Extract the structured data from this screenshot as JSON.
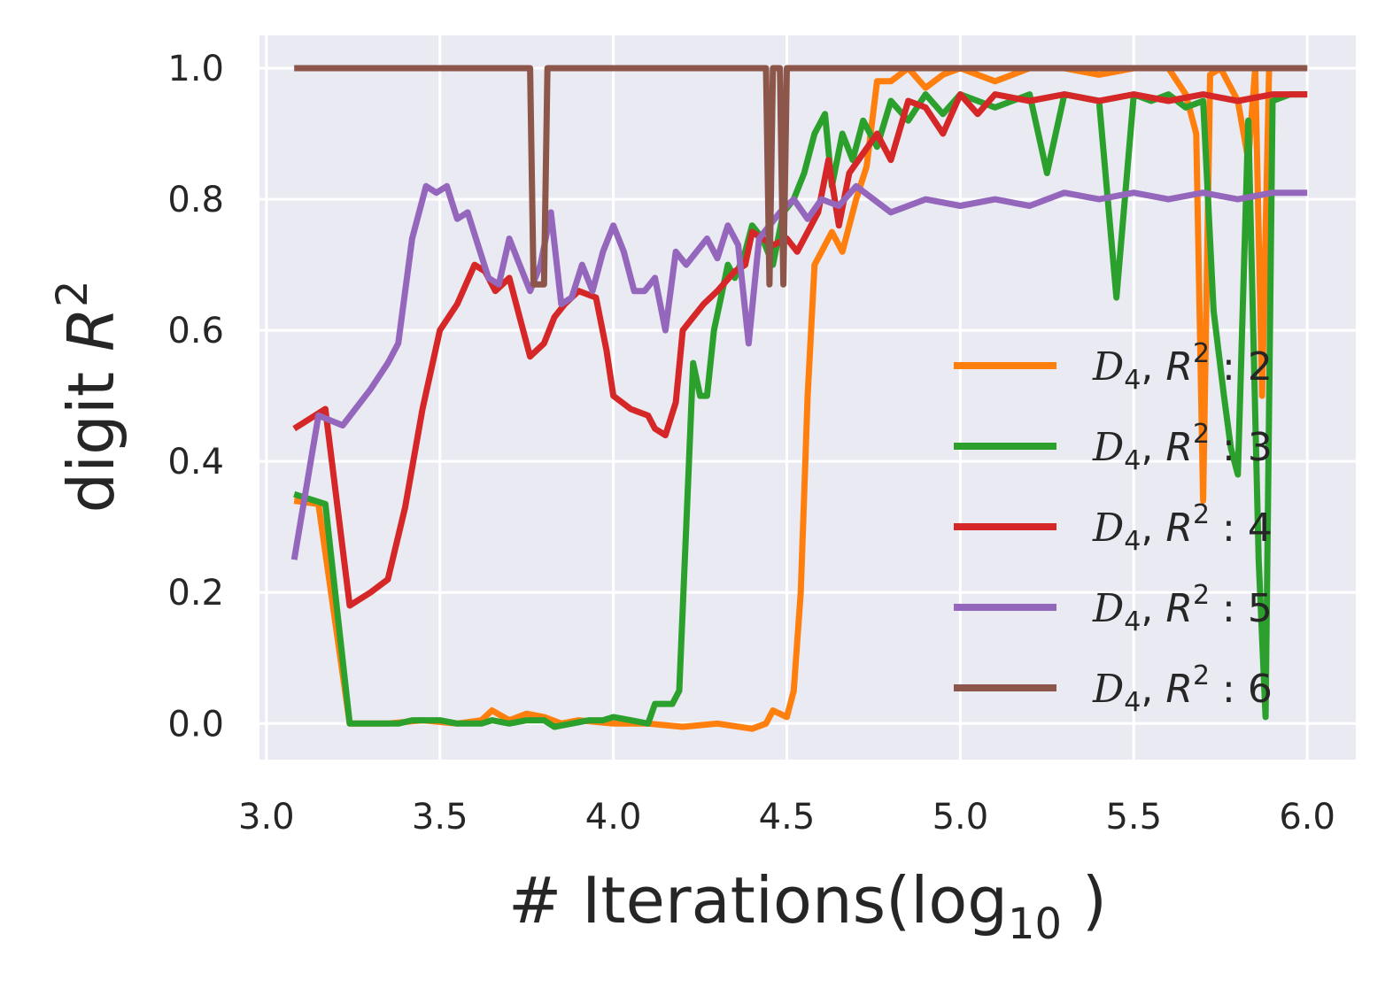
{
  "chart_data": {
    "type": "line",
    "title": "",
    "xlabel": "# Iterations(log",
    "xlabel_sub": "10",
    "xlabel_close": " )",
    "ylabel": "digit ",
    "ylabel_var": "R",
    "ylabel_sup": "2",
    "xlim": [
      2.98,
      6.14
    ],
    "ylim": [
      -0.055,
      1.05
    ],
    "xticks": [
      3.0,
      3.5,
      4.0,
      4.5,
      5.0,
      5.5,
      6.0
    ],
    "xtick_labels": [
      "3.0",
      "3.5",
      "4.0",
      "4.5",
      "5.0",
      "5.5",
      "6.0"
    ],
    "yticks": [
      0.0,
      0.2,
      0.4,
      0.6,
      0.8,
      1.0
    ],
    "ytick_labels": [
      "0.0",
      "0.2",
      "0.4",
      "0.6",
      "0.8",
      "1.0"
    ],
    "grid": true,
    "background": "#eaeaf2",
    "legend_position": "lower-right",
    "series": [
      {
        "name_d": "D",
        "name_dsub": "4",
        "name_r": "R",
        "name_rsup": "2",
        "name_suffix": ": 2",
        "color": "#ff7f0e",
        "points": [
          [
            3.08,
            0.34
          ],
          [
            3.15,
            0.335
          ],
          [
            3.24,
            0.0
          ],
          [
            3.35,
            0.0
          ],
          [
            3.45,
            0.005
          ],
          [
            3.55,
            0.0
          ],
          [
            3.62,
            0.005
          ],
          [
            3.65,
            0.02
          ],
          [
            3.7,
            0.005
          ],
          [
            3.75,
            0.015
          ],
          [
            3.8,
            0.01
          ],
          [
            3.85,
            0.0
          ],
          [
            3.9,
            0.005
          ],
          [
            4.0,
            0.0
          ],
          [
            4.1,
            0.0
          ],
          [
            4.2,
            -0.005
          ],
          [
            4.3,
            0.0
          ],
          [
            4.4,
            -0.008
          ],
          [
            4.44,
            0.0
          ],
          [
            4.46,
            0.02
          ],
          [
            4.5,
            0.01
          ],
          [
            4.52,
            0.05
          ],
          [
            4.54,
            0.2
          ],
          [
            4.56,
            0.5
          ],
          [
            4.58,
            0.7
          ],
          [
            4.6,
            0.72
          ],
          [
            4.63,
            0.75
          ],
          [
            4.66,
            0.72
          ],
          [
            4.7,
            0.8
          ],
          [
            4.73,
            0.85
          ],
          [
            4.76,
            0.98
          ],
          [
            4.8,
            0.98
          ],
          [
            4.85,
            1.0
          ],
          [
            4.9,
            0.97
          ],
          [
            4.95,
            0.99
          ],
          [
            5.0,
            1.0
          ],
          [
            5.1,
            0.98
          ],
          [
            5.2,
            1.0
          ],
          [
            5.3,
            1.0
          ],
          [
            5.4,
            0.99
          ],
          [
            5.5,
            1.0
          ],
          [
            5.6,
            1.0
          ],
          [
            5.65,
            0.96
          ],
          [
            5.68,
            0.9
          ],
          [
            5.7,
            0.34
          ],
          [
            5.72,
            0.99
          ],
          [
            5.75,
            1.0
          ],
          [
            5.8,
            0.95
          ],
          [
            5.83,
            0.86
          ],
          [
            5.85,
            1.0
          ],
          [
            5.87,
            0.5
          ],
          [
            5.89,
            1.0
          ],
          [
            5.95,
            1.0
          ],
          [
            6.0,
            1.0
          ]
        ]
      },
      {
        "name_d": "D",
        "name_dsub": "4",
        "name_r": "R",
        "name_rsup": "2",
        "name_suffix": ": 3",
        "color": "#2ca02c",
        "points": [
          [
            3.08,
            0.35
          ],
          [
            3.17,
            0.335
          ],
          [
            3.24,
            0.0
          ],
          [
            3.3,
            0.0
          ],
          [
            3.38,
            0.0
          ],
          [
            3.42,
            0.005
          ],
          [
            3.5,
            0.005
          ],
          [
            3.55,
            0.0
          ],
          [
            3.62,
            0.0
          ],
          [
            3.65,
            0.005
          ],
          [
            3.7,
            0.0
          ],
          [
            3.75,
            0.005
          ],
          [
            3.8,
            0.005
          ],
          [
            3.83,
            -0.005
          ],
          [
            3.88,
            0.0
          ],
          [
            3.93,
            0.005
          ],
          [
            3.97,
            0.005
          ],
          [
            4.0,
            0.01
          ],
          [
            4.05,
            0.005
          ],
          [
            4.1,
            0.0
          ],
          [
            4.12,
            0.03
          ],
          [
            4.14,
            0.03
          ],
          [
            4.17,
            0.03
          ],
          [
            4.19,
            0.05
          ],
          [
            4.21,
            0.3
          ],
          [
            4.23,
            0.55
          ],
          [
            4.25,
            0.5
          ],
          [
            4.27,
            0.5
          ],
          [
            4.29,
            0.6
          ],
          [
            4.31,
            0.65
          ],
          [
            4.33,
            0.7
          ],
          [
            4.35,
            0.68
          ],
          [
            4.38,
            0.72
          ],
          [
            4.4,
            0.76
          ],
          [
            4.43,
            0.74
          ],
          [
            4.46,
            0.7
          ],
          [
            4.49,
            0.78
          ],
          [
            4.52,
            0.8
          ],
          [
            4.55,
            0.84
          ],
          [
            4.58,
            0.9
          ],
          [
            4.61,
            0.93
          ],
          [
            4.63,
            0.82
          ],
          [
            4.66,
            0.9
          ],
          [
            4.69,
            0.86
          ],
          [
            4.72,
            0.92
          ],
          [
            4.76,
            0.88
          ],
          [
            4.8,
            0.95
          ],
          [
            4.85,
            0.92
          ],
          [
            4.9,
            0.96
          ],
          [
            4.95,
            0.93
          ],
          [
            5.0,
            0.96
          ],
          [
            5.1,
            0.94
          ],
          [
            5.2,
            0.96
          ],
          [
            5.25,
            0.84
          ],
          [
            5.3,
            0.96
          ],
          [
            5.4,
            0.95
          ],
          [
            5.45,
            0.65
          ],
          [
            5.5,
            0.96
          ],
          [
            5.55,
            0.95
          ],
          [
            5.6,
            0.96
          ],
          [
            5.65,
            0.94
          ],
          [
            5.7,
            0.95
          ],
          [
            5.73,
            0.63
          ],
          [
            5.76,
            0.5
          ],
          [
            5.78,
            0.42
          ],
          [
            5.8,
            0.38
          ],
          [
            5.83,
            0.92
          ],
          [
            5.86,
            0.25
          ],
          [
            5.88,
            0.01
          ],
          [
            5.9,
            0.95
          ],
          [
            5.95,
            0.96
          ],
          [
            6.0,
            0.96
          ]
        ]
      },
      {
        "name_d": "D",
        "name_dsub": "4",
        "name_r": "R",
        "name_rsup": "2",
        "name_suffix": ": 4",
        "color": "#d62728",
        "points": [
          [
            3.08,
            0.45
          ],
          [
            3.17,
            0.48
          ],
          [
            3.24,
            0.18
          ],
          [
            3.3,
            0.2
          ],
          [
            3.35,
            0.22
          ],
          [
            3.4,
            0.33
          ],
          [
            3.45,
            0.48
          ],
          [
            3.5,
            0.6
          ],
          [
            3.55,
            0.64
          ],
          [
            3.6,
            0.7
          ],
          [
            3.63,
            0.69
          ],
          [
            3.66,
            0.66
          ],
          [
            3.7,
            0.68
          ],
          [
            3.73,
            0.62
          ],
          [
            3.76,
            0.56
          ],
          [
            3.8,
            0.58
          ],
          [
            3.83,
            0.62
          ],
          [
            3.86,
            0.64
          ],
          [
            3.9,
            0.66
          ],
          [
            3.95,
            0.65
          ],
          [
            3.98,
            0.57
          ],
          [
            4.0,
            0.5
          ],
          [
            4.05,
            0.48
          ],
          [
            4.1,
            0.47
          ],
          [
            4.12,
            0.45
          ],
          [
            4.15,
            0.44
          ],
          [
            4.18,
            0.49
          ],
          [
            4.2,
            0.6
          ],
          [
            4.23,
            0.62
          ],
          [
            4.26,
            0.64
          ],
          [
            4.3,
            0.66
          ],
          [
            4.35,
            0.69
          ],
          [
            4.38,
            0.7
          ],
          [
            4.4,
            0.75
          ],
          [
            4.43,
            0.74
          ],
          [
            4.46,
            0.73
          ],
          [
            4.5,
            0.74
          ],
          [
            4.53,
            0.72
          ],
          [
            4.56,
            0.75
          ],
          [
            4.59,
            0.78
          ],
          [
            4.62,
            0.86
          ],
          [
            4.65,
            0.76
          ],
          [
            4.68,
            0.84
          ],
          [
            4.72,
            0.87
          ],
          [
            4.76,
            0.9
          ],
          [
            4.8,
            0.86
          ],
          [
            4.85,
            0.95
          ],
          [
            4.9,
            0.94
          ],
          [
            4.95,
            0.9
          ],
          [
            5.0,
            0.96
          ],
          [
            5.05,
            0.93
          ],
          [
            5.1,
            0.96
          ],
          [
            5.2,
            0.95
          ],
          [
            5.3,
            0.96
          ],
          [
            5.4,
            0.95
          ],
          [
            5.5,
            0.96
          ],
          [
            5.6,
            0.95
          ],
          [
            5.7,
            0.96
          ],
          [
            5.8,
            0.95
          ],
          [
            5.9,
            0.96
          ],
          [
            6.0,
            0.96
          ]
        ]
      },
      {
        "name_d": "D",
        "name_dsub": "4",
        "name_r": "R",
        "name_rsup": "2",
        "name_suffix": ": 5",
        "color": "#9467bd",
        "points": [
          [
            3.08,
            0.25
          ],
          [
            3.15,
            0.47
          ],
          [
            3.22,
            0.455
          ],
          [
            3.3,
            0.51
          ],
          [
            3.35,
            0.55
          ],
          [
            3.38,
            0.58
          ],
          [
            3.42,
            0.74
          ],
          [
            3.46,
            0.82
          ],
          [
            3.49,
            0.81
          ],
          [
            3.52,
            0.82
          ],
          [
            3.55,
            0.77
          ],
          [
            3.58,
            0.78
          ],
          [
            3.61,
            0.73
          ],
          [
            3.64,
            0.68
          ],
          [
            3.67,
            0.67
          ],
          [
            3.7,
            0.74
          ],
          [
            3.73,
            0.7
          ],
          [
            3.76,
            0.66
          ],
          [
            3.79,
            0.7
          ],
          [
            3.82,
            0.78
          ],
          [
            3.85,
            0.64
          ],
          [
            3.88,
            0.65
          ],
          [
            3.91,
            0.7
          ],
          [
            3.94,
            0.66
          ],
          [
            3.97,
            0.72
          ],
          [
            4.0,
            0.76
          ],
          [
            4.03,
            0.72
          ],
          [
            4.06,
            0.66
          ],
          [
            4.09,
            0.66
          ],
          [
            4.12,
            0.68
          ],
          [
            4.15,
            0.6
          ],
          [
            4.18,
            0.72
          ],
          [
            4.21,
            0.7
          ],
          [
            4.24,
            0.72
          ],
          [
            4.27,
            0.74
          ],
          [
            4.3,
            0.71
          ],
          [
            4.33,
            0.76
          ],
          [
            4.36,
            0.73
          ],
          [
            4.39,
            0.58
          ],
          [
            4.42,
            0.74
          ],
          [
            4.45,
            0.76
          ],
          [
            4.48,
            0.78
          ],
          [
            4.52,
            0.8
          ],
          [
            4.56,
            0.77
          ],
          [
            4.6,
            0.8
          ],
          [
            4.65,
            0.79
          ],
          [
            4.7,
            0.82
          ],
          [
            4.8,
            0.78
          ],
          [
            4.9,
            0.8
          ],
          [
            5.0,
            0.79
          ],
          [
            5.1,
            0.8
          ],
          [
            5.2,
            0.79
          ],
          [
            5.3,
            0.81
          ],
          [
            5.4,
            0.8
          ],
          [
            5.5,
            0.81
          ],
          [
            5.6,
            0.8
          ],
          [
            5.7,
            0.81
          ],
          [
            5.8,
            0.8
          ],
          [
            5.9,
            0.81
          ],
          [
            6.0,
            0.81
          ]
        ]
      },
      {
        "name_d": "D",
        "name_dsub": "4",
        "name_r": "R",
        "name_rsup": "2",
        "name_suffix": ": 6",
        "color": "#8c564b",
        "points": [
          [
            3.08,
            1.0
          ],
          [
            3.76,
            1.0
          ],
          [
            3.77,
            0.67
          ],
          [
            3.8,
            0.67
          ],
          [
            3.81,
            1.0
          ],
          [
            4.44,
            1.0
          ],
          [
            4.45,
            0.67
          ],
          [
            4.46,
            1.0
          ],
          [
            4.48,
            1.0
          ],
          [
            4.49,
            0.67
          ],
          [
            4.5,
            1.0
          ],
          [
            6.0,
            1.0
          ]
        ]
      }
    ]
  }
}
